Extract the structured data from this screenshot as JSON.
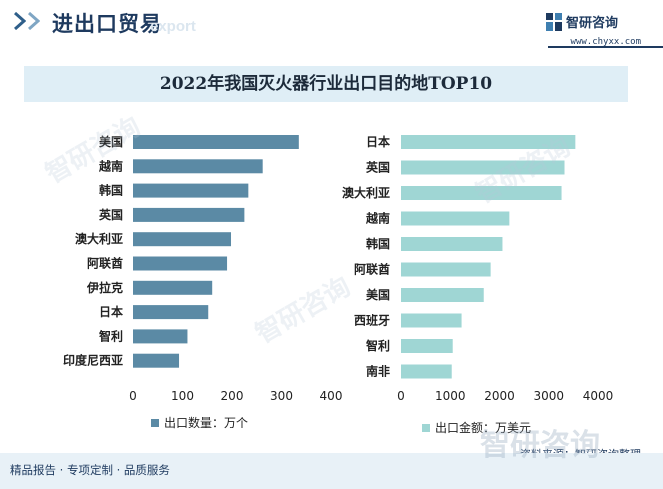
{
  "header": {
    "title": "进出口贸易",
    "watermark_text": "export",
    "brand_name": "智研咨询",
    "brand_url": "www.chyxx.com"
  },
  "chart_title": "2022年我国灭火器行业出口目的地TOP10",
  "chart_data": [
    {
      "type": "bar",
      "orientation": "horizontal",
      "categories": [
        "美国",
        "越南",
        "韩国",
        "英国",
        "澳大利亚",
        "阿联酋",
        "伊拉克",
        "日本",
        "智利",
        "印度尼西亚"
      ],
      "series": [
        {
          "name": "出口数量：万个",
          "values": [
            335,
            262,
            233,
            225,
            198,
            190,
            160,
            152,
            110,
            93
          ]
        }
      ],
      "xlim": [
        0,
        400
      ],
      "xticks": [
        0,
        100,
        200,
        300,
        400
      ],
      "grid": false,
      "legend": "bottom-left",
      "color": "#5b8aa5"
    },
    {
      "type": "bar",
      "orientation": "horizontal",
      "categories": [
        "日本",
        "英国",
        "澳大利亚",
        "越南",
        "韩国",
        "阿联酋",
        "美国",
        "西班牙",
        "智利",
        "南非"
      ],
      "series": [
        {
          "name": "出口金额：万美元",
          "values": [
            3540,
            3320,
            3260,
            2200,
            2060,
            1820,
            1680,
            1230,
            1050,
            1030
          ]
        }
      ],
      "xlim": [
        0,
        4000
      ],
      "xticks": [
        0,
        1000,
        2000,
        3000,
        4000
      ],
      "grid": false,
      "legend": "bottom-left",
      "color": "#9fd6d4"
    }
  ],
  "source": "资料来源：智研咨询整理",
  "footer": "精品报告 · 专项定制 · 品质服务",
  "watermark": "智研咨询"
}
